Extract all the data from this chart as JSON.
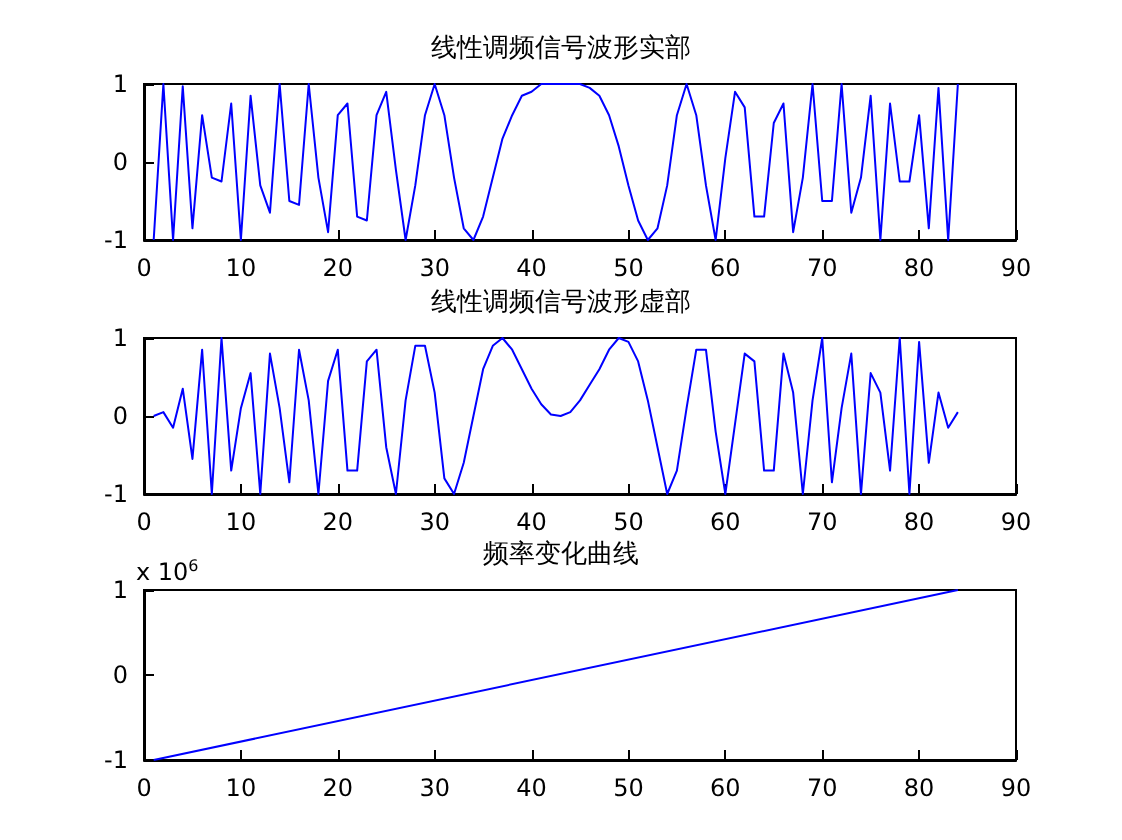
{
  "chart_data": [
    {
      "type": "line",
      "title": "线性调频信号波形实部",
      "color": "#0000ff",
      "marker": "none",
      "x": [
        1,
        2,
        3,
        4,
        5,
        6,
        7,
        8,
        9,
        10,
        11,
        12,
        13,
        14,
        15,
        16,
        17,
        18,
        19,
        20,
        21,
        22,
        23,
        24,
        25,
        26,
        27,
        28,
        29,
        30,
        31,
        32,
        33,
        34,
        35,
        36,
        37,
        38,
        39,
        40,
        41,
        42,
        43,
        44,
        45,
        46,
        47,
        48,
        49,
        50,
        51,
        52,
        53,
        54,
        55,
        56,
        57,
        58,
        59,
        60,
        61,
        62,
        63,
        64,
        65,
        66,
        67,
        68,
        69,
        70,
        71,
        72,
        73,
        74,
        75,
        76,
        77,
        78,
        79,
        80,
        81,
        82,
        83,
        84
      ],
      "values": [
        -1,
        1,
        -1,
        0.97,
        -0.85,
        0.6,
        -0.2,
        -0.25,
        0.75,
        -1,
        0.85,
        -0.3,
        -0.65,
        1,
        -0.5,
        -0.55,
        1,
        -0.2,
        -0.9,
        0.6,
        0.75,
        -0.7,
        -0.75,
        0.6,
        0.9,
        -0.1,
        -1,
        -0.3,
        0.6,
        1,
        0.6,
        -0.2,
        -0.85,
        -1,
        -0.7,
        -0.2,
        0.3,
        0.6,
        0.85,
        0.9,
        1,
        1,
        1,
        1,
        1,
        0.95,
        0.85,
        0.6,
        0.2,
        -0.3,
        -0.75,
        -1,
        -0.85,
        -0.3,
        0.6,
        1,
        0.6,
        -0.3,
        -1,
        0.05,
        0.9,
        0.7,
        -0.7,
        -0.7,
        0.5,
        0.75,
        -0.9,
        -0.2,
        1,
        -0.5,
        -0.5,
        1,
        -0.65,
        -0.2,
        0.85,
        -1,
        0.75,
        -0.25,
        -0.25,
        0.6,
        -0.85,
        0.95,
        -1,
        1
      ],
      "xlim": [
        0,
        90
      ],
      "xticks": [
        0,
        10,
        20,
        30,
        40,
        50,
        60,
        70,
        80,
        90
      ],
      "ylim": [
        -1,
        1
      ],
      "yticks": [
        -1,
        0,
        1
      ]
    },
    {
      "type": "line",
      "title": "线性调频信号波形虚部",
      "color": "#0000ff",
      "marker": "none",
      "x": [
        1,
        2,
        3,
        4,
        5,
        6,
        7,
        8,
        9,
        10,
        11,
        12,
        13,
        14,
        15,
        16,
        17,
        18,
        19,
        20,
        21,
        22,
        23,
        24,
        25,
        26,
        27,
        28,
        29,
        30,
        31,
        32,
        33,
        34,
        35,
        36,
        37,
        38,
        39,
        40,
        41,
        42,
        43,
        44,
        45,
        46,
        47,
        48,
        49,
        50,
        51,
        52,
        53,
        54,
        55,
        56,
        57,
        58,
        59,
        60,
        61,
        62,
        63,
        64,
        65,
        66,
        67,
        68,
        69,
        70,
        71,
        72,
        73,
        74,
        75,
        76,
        77,
        78,
        79,
        80,
        81,
        82,
        83,
        84
      ],
      "values": [
        0,
        0.05,
        -0.15,
        0.35,
        -0.55,
        0.85,
        -1,
        1,
        -0.7,
        0.1,
        0.55,
        -1,
        0.8,
        0.1,
        -0.85,
        0.85,
        0.2,
        -1,
        0.45,
        0.85,
        -0.7,
        -0.7,
        0.7,
        0.85,
        -0.4,
        -1,
        0.2,
        0.9,
        0.9,
        0.3,
        -0.8,
        -1,
        -0.6,
        0,
        0.6,
        0.9,
        1,
        0.85,
        0.6,
        0.35,
        0.15,
        0.02,
        0,
        0.05,
        0.2,
        0.4,
        0.6,
        0.85,
        1,
        0.95,
        0.7,
        0.2,
        -0.4,
        -1,
        -0.7,
        0.1,
        0.85,
        0.85,
        -0.2,
        -1,
        -0.1,
        0.8,
        0.7,
        -0.7,
        -0.7,
        0.8,
        0.3,
        -1,
        0.2,
        1,
        -0.85,
        0.1,
        0.8,
        -1,
        0.55,
        0.3,
        -0.7,
        1,
        -1,
        0.95,
        -0.6,
        0.3,
        -0.15,
        0.05
      ],
      "xlim": [
        0,
        90
      ],
      "xticks": [
        0,
        10,
        20,
        30,
        40,
        50,
        60,
        70,
        80,
        90
      ],
      "ylim": [
        -1,
        1
      ],
      "yticks": [
        -1,
        0,
        1
      ]
    },
    {
      "type": "line",
      "title": "频率变化曲线",
      "color": "#0000ff",
      "marker": "none",
      "x": [
        1,
        84
      ],
      "values": [
        -1,
        1
      ],
      "xlim": [
        0,
        90
      ],
      "xticks": [
        0,
        10,
        20,
        30,
        40,
        50,
        60,
        70,
        80,
        90
      ],
      "ylim": [
        -1,
        1
      ],
      "yticks": [
        -1,
        0,
        1
      ],
      "annotations": [
        "x 10$^{6}$"
      ]
    }
  ]
}
